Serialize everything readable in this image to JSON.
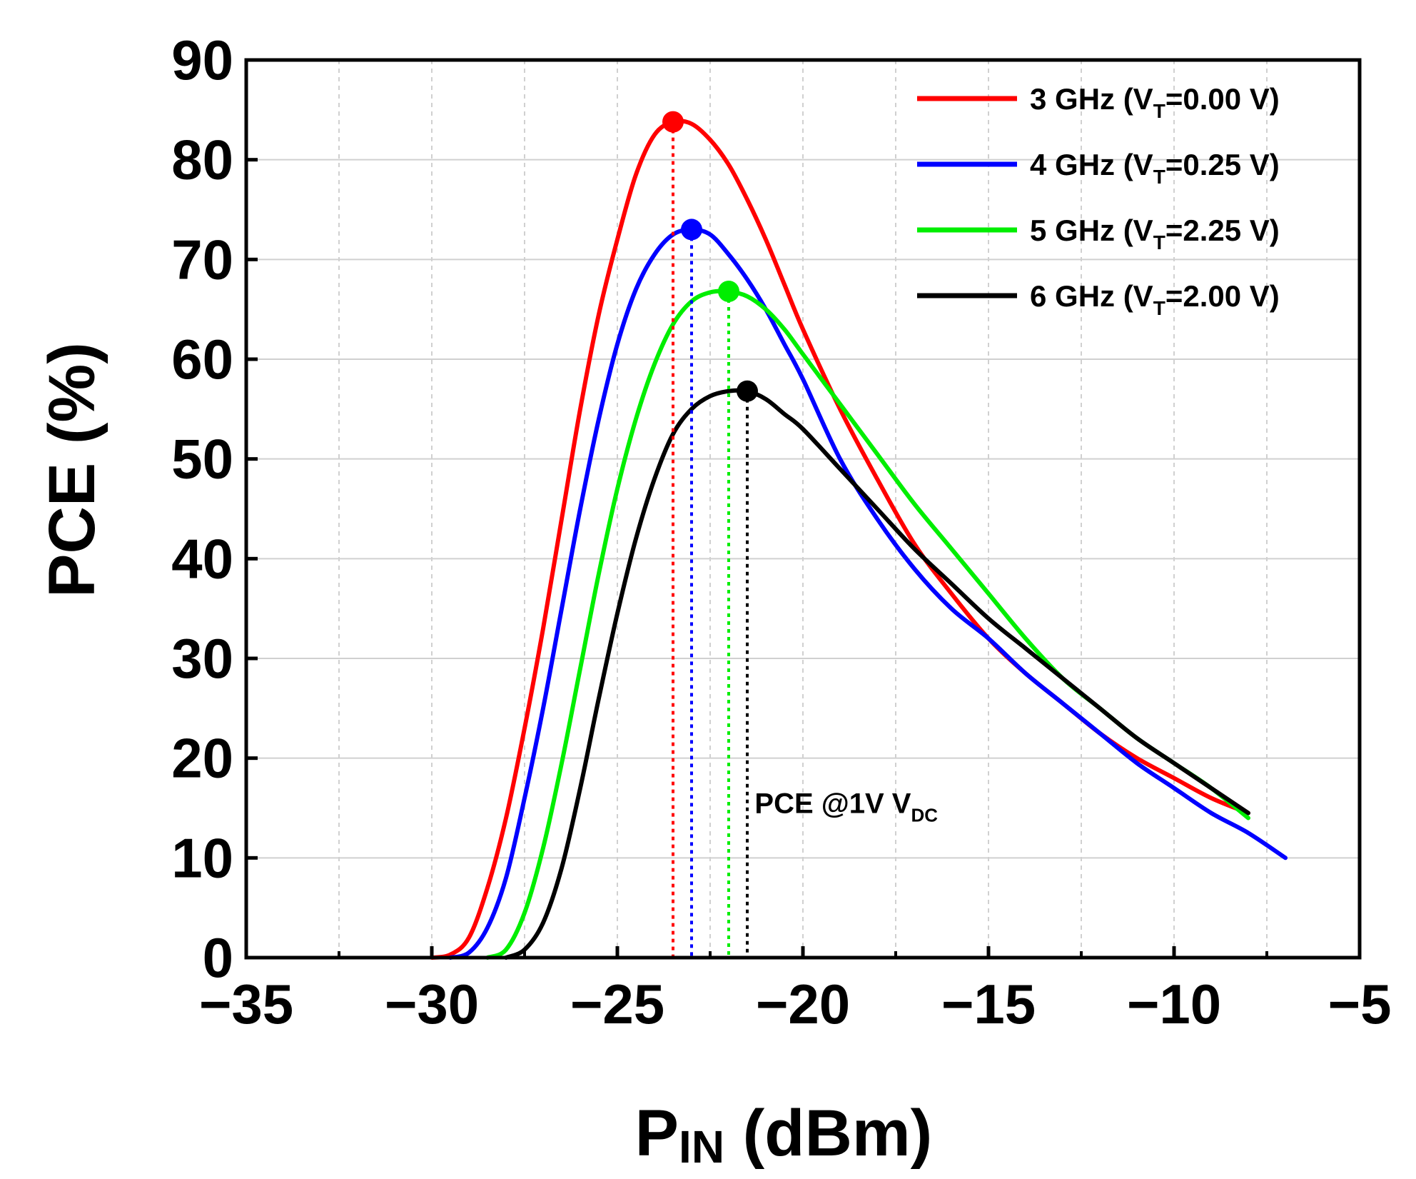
{
  "chart_data": {
    "type": "line",
    "title": "",
    "xlabel": {
      "main": "P",
      "sub": "IN",
      "unit": " (dBm)"
    },
    "ylabel": "PCE (%)",
    "xlim": [
      -35,
      -5
    ],
    "ylim": [
      0,
      90
    ],
    "x_ticks": [
      -35,
      -30,
      -25,
      -20,
      -15,
      -10,
      -5
    ],
    "x_tick_labels": [
      "−35",
      "−30",
      "−25",
      "−20",
      "−15",
      "−10",
      "−5"
    ],
    "y_ticks": [
      0,
      10,
      20,
      30,
      40,
      50,
      60,
      70,
      80,
      90
    ],
    "y_tick_labels": [
      "0",
      "10",
      "20",
      "30",
      "40",
      "50",
      "60",
      "70",
      "80",
      "90"
    ],
    "grid": true,
    "legend_position": "top-right",
    "series": [
      {
        "name": "3 GHz",
        "legend_prefix": "3 GHz (V",
        "legend_sub": "T",
        "legend_suffix": "=0.00 V)",
        "color": "#ff0000",
        "x": [
          -30.0,
          -29.5,
          -29.0,
          -28.5,
          -28.0,
          -27.5,
          -27.0,
          -26.5,
          -26.0,
          -25.5,
          -25.0,
          -24.5,
          -24.0,
          -23.5,
          -23.0,
          -22.5,
          -22.0,
          -21.5,
          -21.0,
          -20.5,
          -20.0,
          -19.0,
          -18.0,
          -17.0,
          -16.0,
          -15.0,
          -14.0,
          -13.0,
          -12.0,
          -11.0,
          -10.0,
          -9.0,
          -8.0
        ],
        "y": [
          0.0,
          0.3,
          2.0,
          7.0,
          14.0,
          23.0,
          33.0,
          44.0,
          55.0,
          64.5,
          72.0,
          78.5,
          82.5,
          83.8,
          83.6,
          82.0,
          79.5,
          76.0,
          72.0,
          67.5,
          63.0,
          55.0,
          48.0,
          41.5,
          36.5,
          32.0,
          28.5,
          25.5,
          22.5,
          20.0,
          18.0,
          16.0,
          14.5
        ]
      },
      {
        "name": "4 GHz",
        "legend_prefix": "4 GHz (V",
        "legend_sub": "T",
        "legend_suffix": "=0.25 V)",
        "color": "#0000ff",
        "x": [
          -29.5,
          -29.0,
          -28.5,
          -28.0,
          -27.5,
          -27.0,
          -26.5,
          -26.0,
          -25.5,
          -25.0,
          -24.5,
          -24.0,
          -23.5,
          -23.0,
          -22.5,
          -22.0,
          -21.5,
          -21.0,
          -20.5,
          -20.0,
          -19.0,
          -18.0,
          -17.0,
          -16.0,
          -15.0,
          -14.0,
          -13.0,
          -12.0,
          -11.0,
          -10.0,
          -9.0,
          -8.0,
          -7.0
        ],
        "y": [
          0.0,
          0.5,
          3.0,
          8.0,
          16.0,
          25.0,
          35.0,
          45.0,
          54.0,
          61.5,
          67.0,
          70.5,
          72.5,
          73.0,
          72.5,
          70.5,
          68.0,
          65.0,
          61.5,
          58.0,
          50.0,
          44.0,
          39.0,
          35.0,
          32.0,
          28.5,
          25.5,
          22.5,
          19.5,
          17.0,
          14.5,
          12.5,
          10.0
        ]
      },
      {
        "name": "5 GHz",
        "legend_prefix": "5 GHz (V",
        "legend_sub": "T",
        "legend_suffix": "=2.25 V)",
        "color": "#00ee00",
        "x": [
          -28.5,
          -28.0,
          -27.5,
          -27.0,
          -26.5,
          -26.0,
          -25.5,
          -25.0,
          -24.5,
          -24.0,
          -23.5,
          -23.0,
          -22.5,
          -22.0,
          -21.5,
          -21.0,
          -20.5,
          -20.0,
          -19.0,
          -18.0,
          -17.0,
          -16.0,
          -15.0,
          -14.0,
          -13.0,
          -12.0,
          -11.0,
          -10.0,
          -9.0,
          -8.0
        ],
        "y": [
          0.0,
          0.8,
          4.5,
          11.0,
          19.5,
          29.0,
          38.5,
          47.0,
          54.0,
          59.5,
          63.5,
          65.8,
          66.7,
          66.8,
          66.3,
          65.0,
          63.0,
          60.5,
          55.5,
          50.5,
          45.5,
          41.0,
          36.5,
          32.0,
          28.0,
          25.0,
          22.0,
          19.5,
          17.0,
          14.0
        ]
      },
      {
        "name": "6 GHz",
        "legend_prefix": "6 GHz (V",
        "legend_sub": "T",
        "legend_suffix": "=2.00 V)",
        "color": "#000000",
        "x": [
          -28.0,
          -27.5,
          -27.0,
          -26.5,
          -26.0,
          -25.5,
          -25.0,
          -24.5,
          -24.0,
          -23.5,
          -23.0,
          -22.5,
          -22.0,
          -21.5,
          -21.0,
          -20.5,
          -20.0,
          -19.0,
          -18.0,
          -17.0,
          -16.0,
          -15.0,
          -14.0,
          -13.0,
          -12.0,
          -11.0,
          -10.0,
          -9.0,
          -8.0
        ],
        "y": [
          0.0,
          0.8,
          3.5,
          9.0,
          17.0,
          26.0,
          34.5,
          42.0,
          48.0,
          52.5,
          55.0,
          56.3,
          56.8,
          56.8,
          56.0,
          54.5,
          53.0,
          49.0,
          45.0,
          41.0,
          37.5,
          34.0,
          31.0,
          28.0,
          25.0,
          22.0,
          19.5,
          17.0,
          14.5
        ]
      }
    ],
    "peak_markers": [
      {
        "series": "3 GHz",
        "x": -23.5,
        "y": 83.8,
        "color": "#ff0000"
      },
      {
        "series": "4 GHz",
        "x": -23.0,
        "y": 73.0,
        "color": "#0000ff"
      },
      {
        "series": "5 GHz",
        "x": -22.0,
        "y": 66.8,
        "color": "#00ee00"
      },
      {
        "series": "6 GHz",
        "x": -21.5,
        "y": 56.8,
        "color": "#000000"
      }
    ],
    "annotation": {
      "text": "PCE @1V V",
      "sub": "DC",
      "x": -21.3,
      "y": 14.5
    }
  }
}
